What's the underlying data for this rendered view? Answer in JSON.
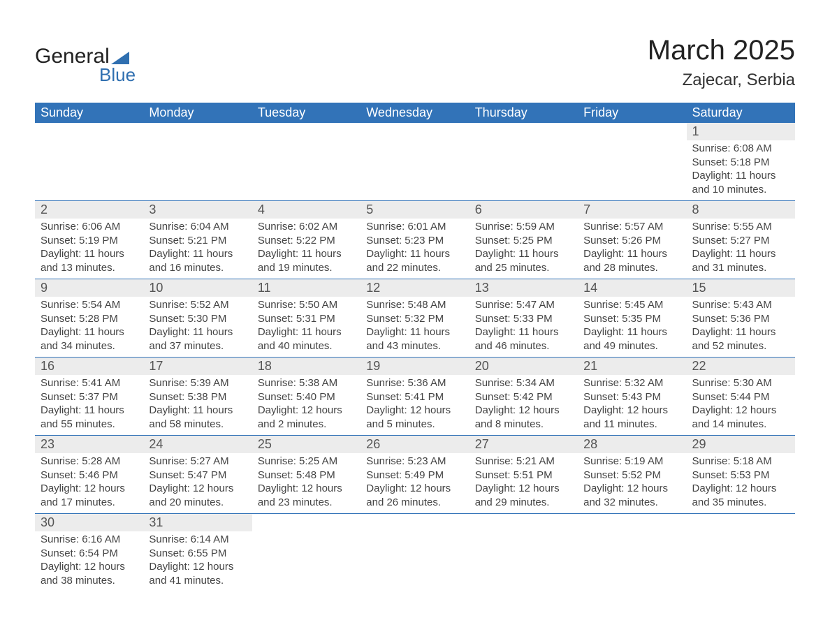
{
  "logo": {
    "top": "General",
    "bottom": "Blue",
    "shape_color": "#2f6fb0"
  },
  "title": "March 2025",
  "location": "Zajecar, Serbia",
  "colors": {
    "header_bg": "#3273b8",
    "header_fg": "#ffffff",
    "daynum_bg": "#ececec",
    "text": "#444444",
    "row_border": "#3273b8"
  },
  "typography": {
    "title_fontsize": 40,
    "location_fontsize": 24,
    "header_fontsize": 18,
    "daynum_fontsize": 18,
    "body_fontsize": 15,
    "font_family": "Arial"
  },
  "day_headers": [
    "Sunday",
    "Monday",
    "Tuesday",
    "Wednesday",
    "Thursday",
    "Friday",
    "Saturday"
  ],
  "weeks": [
    [
      null,
      null,
      null,
      null,
      null,
      null,
      {
        "n": "1",
        "sunrise": "6:08 AM",
        "sunset": "5:18 PM",
        "daylight": "11 hours and 10 minutes."
      }
    ],
    [
      {
        "n": "2",
        "sunrise": "6:06 AM",
        "sunset": "5:19 PM",
        "daylight": "11 hours and 13 minutes."
      },
      {
        "n": "3",
        "sunrise": "6:04 AM",
        "sunset": "5:21 PM",
        "daylight": "11 hours and 16 minutes."
      },
      {
        "n": "4",
        "sunrise": "6:02 AM",
        "sunset": "5:22 PM",
        "daylight": "11 hours and 19 minutes."
      },
      {
        "n": "5",
        "sunrise": "6:01 AM",
        "sunset": "5:23 PM",
        "daylight": "11 hours and 22 minutes."
      },
      {
        "n": "6",
        "sunrise": "5:59 AM",
        "sunset": "5:25 PM",
        "daylight": "11 hours and 25 minutes."
      },
      {
        "n": "7",
        "sunrise": "5:57 AM",
        "sunset": "5:26 PM",
        "daylight": "11 hours and 28 minutes."
      },
      {
        "n": "8",
        "sunrise": "5:55 AM",
        "sunset": "5:27 PM",
        "daylight": "11 hours and 31 minutes."
      }
    ],
    [
      {
        "n": "9",
        "sunrise": "5:54 AM",
        "sunset": "5:28 PM",
        "daylight": "11 hours and 34 minutes."
      },
      {
        "n": "10",
        "sunrise": "5:52 AM",
        "sunset": "5:30 PM",
        "daylight": "11 hours and 37 minutes."
      },
      {
        "n": "11",
        "sunrise": "5:50 AM",
        "sunset": "5:31 PM",
        "daylight": "11 hours and 40 minutes."
      },
      {
        "n": "12",
        "sunrise": "5:48 AM",
        "sunset": "5:32 PM",
        "daylight": "11 hours and 43 minutes."
      },
      {
        "n": "13",
        "sunrise": "5:47 AM",
        "sunset": "5:33 PM",
        "daylight": "11 hours and 46 minutes."
      },
      {
        "n": "14",
        "sunrise": "5:45 AM",
        "sunset": "5:35 PM",
        "daylight": "11 hours and 49 minutes."
      },
      {
        "n": "15",
        "sunrise": "5:43 AM",
        "sunset": "5:36 PM",
        "daylight": "11 hours and 52 minutes."
      }
    ],
    [
      {
        "n": "16",
        "sunrise": "5:41 AM",
        "sunset": "5:37 PM",
        "daylight": "11 hours and 55 minutes."
      },
      {
        "n": "17",
        "sunrise": "5:39 AM",
        "sunset": "5:38 PM",
        "daylight": "11 hours and 58 minutes."
      },
      {
        "n": "18",
        "sunrise": "5:38 AM",
        "sunset": "5:40 PM",
        "daylight": "12 hours and 2 minutes."
      },
      {
        "n": "19",
        "sunrise": "5:36 AM",
        "sunset": "5:41 PM",
        "daylight": "12 hours and 5 minutes."
      },
      {
        "n": "20",
        "sunrise": "5:34 AM",
        "sunset": "5:42 PM",
        "daylight": "12 hours and 8 minutes."
      },
      {
        "n": "21",
        "sunrise": "5:32 AM",
        "sunset": "5:43 PM",
        "daylight": "12 hours and 11 minutes."
      },
      {
        "n": "22",
        "sunrise": "5:30 AM",
        "sunset": "5:44 PM",
        "daylight": "12 hours and 14 minutes."
      }
    ],
    [
      {
        "n": "23",
        "sunrise": "5:28 AM",
        "sunset": "5:46 PM",
        "daylight": "12 hours and 17 minutes."
      },
      {
        "n": "24",
        "sunrise": "5:27 AM",
        "sunset": "5:47 PM",
        "daylight": "12 hours and 20 minutes."
      },
      {
        "n": "25",
        "sunrise": "5:25 AM",
        "sunset": "5:48 PM",
        "daylight": "12 hours and 23 minutes."
      },
      {
        "n": "26",
        "sunrise": "5:23 AM",
        "sunset": "5:49 PM",
        "daylight": "12 hours and 26 minutes."
      },
      {
        "n": "27",
        "sunrise": "5:21 AM",
        "sunset": "5:51 PM",
        "daylight": "12 hours and 29 minutes."
      },
      {
        "n": "28",
        "sunrise": "5:19 AM",
        "sunset": "5:52 PM",
        "daylight": "12 hours and 32 minutes."
      },
      {
        "n": "29",
        "sunrise": "5:18 AM",
        "sunset": "5:53 PM",
        "daylight": "12 hours and 35 minutes."
      }
    ],
    [
      {
        "n": "30",
        "sunrise": "6:16 AM",
        "sunset": "6:54 PM",
        "daylight": "12 hours and 38 minutes."
      },
      {
        "n": "31",
        "sunrise": "6:14 AM",
        "sunset": "6:55 PM",
        "daylight": "12 hours and 41 minutes."
      },
      null,
      null,
      null,
      null,
      null
    ]
  ],
  "labels": {
    "sunrise_prefix": "Sunrise: ",
    "sunset_prefix": "Sunset: ",
    "daylight_prefix": "Daylight: "
  }
}
